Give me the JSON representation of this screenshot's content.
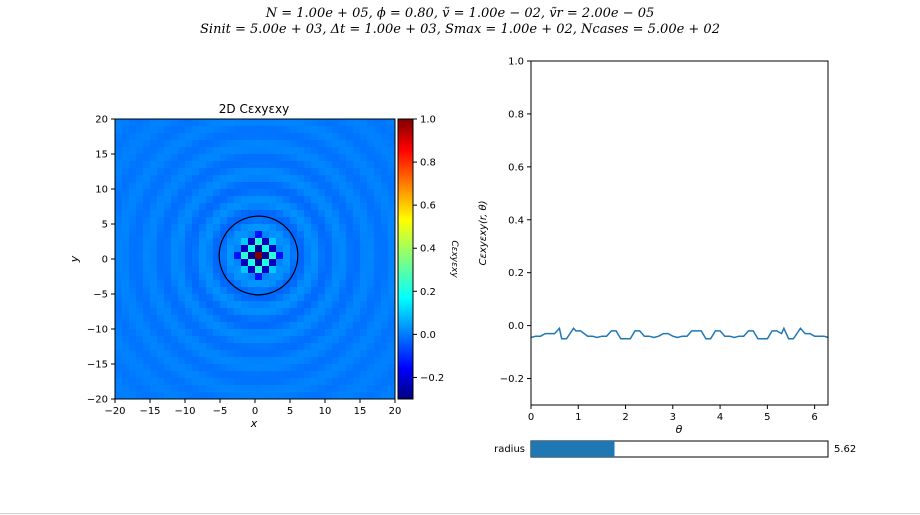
{
  "figure": {
    "title_line1": "N = 1.00e + 05, ϕ = 0.80, ṽ = 1.00e − 02, ṽr = 2.00e − 05",
    "title_line2": "Sinit = 5.00e + 03, Δt = 1.00e + 03, Smax = 1.00e + 02, Ncases = 5.00e + 02"
  },
  "slider": {
    "label": "radius",
    "value_text": "5.62",
    "value": 5.62,
    "min": 0,
    "max": 20,
    "fill_color": "#1f77b4"
  },
  "chart_data": [
    {
      "type": "heatmap",
      "title": "2D Cεxyεxy",
      "xlabel": "x",
      "ylabel": "y",
      "xlim": [
        -20,
        20
      ],
      "ylim": [
        -20,
        20
      ],
      "x_ticks": [
        "−20",
        "−15",
        "−10",
        "−5",
        "0",
        "5",
        "10",
        "15",
        "20"
      ],
      "y_ticks": [
        "20",
        "15",
        "10",
        "5",
        "0",
        "−5",
        "−10",
        "−15",
        "−20"
      ],
      "grid_size": 40,
      "cells": [
        {
          "dx": 0,
          "dy": 0,
          "value": 1.0
        },
        {
          "dx": 1,
          "dy": 0,
          "value": -0.28
        },
        {
          "dx": -1,
          "dy": 0,
          "value": -0.28
        },
        {
          "dx": 0,
          "dy": 1,
          "value": -0.28
        },
        {
          "dx": 0,
          "dy": -1,
          "value": -0.28
        },
        {
          "dx": 1,
          "dy": 1,
          "value": 0.22
        },
        {
          "dx": -1,
          "dy": 1,
          "value": 0.22
        },
        {
          "dx": 1,
          "dy": -1,
          "value": 0.22
        },
        {
          "dx": -1,
          "dy": -1,
          "value": 0.22
        },
        {
          "dx": 2,
          "dy": 0,
          "value": 0.24
        },
        {
          "dx": -2,
          "dy": 0,
          "value": 0.24
        },
        {
          "dx": 0,
          "dy": 2,
          "value": 0.24
        },
        {
          "dx": 0,
          "dy": -2,
          "value": 0.24
        },
        {
          "dx": 2,
          "dy": 1,
          "value": -0.22
        },
        {
          "dx": -2,
          "dy": 1,
          "value": -0.22
        },
        {
          "dx": 2,
          "dy": -1,
          "value": -0.22
        },
        {
          "dx": -2,
          "dy": -1,
          "value": -0.22
        },
        {
          "dx": 1,
          "dy": 2,
          "value": -0.22
        },
        {
          "dx": -1,
          "dy": 2,
          "value": -0.22
        },
        {
          "dx": 1,
          "dy": -2,
          "value": -0.22
        },
        {
          "dx": -1,
          "dy": -2,
          "value": -0.22
        },
        {
          "dx": 2,
          "dy": 2,
          "value": 0.12
        },
        {
          "dx": -2,
          "dy": 2,
          "value": 0.12
        },
        {
          "dx": 2,
          "dy": -2,
          "value": 0.12
        },
        {
          "dx": -2,
          "dy": -2,
          "value": 0.12
        },
        {
          "dx": 3,
          "dy": 0,
          "value": -0.12
        },
        {
          "dx": -3,
          "dy": 0,
          "value": -0.12
        },
        {
          "dx": 0,
          "dy": 3,
          "value": -0.12
        },
        {
          "dx": 0,
          "dy": -3,
          "value": -0.12
        }
      ],
      "ring_radius": 5.62,
      "colorbar": {
        "label": "Cεxyεxy",
        "min": -0.3,
        "max": 1.0,
        "ticks": [
          "−0.2",
          "0.0",
          "0.2",
          "0.4",
          "0.6",
          "0.8",
          "1.0"
        ],
        "tick_values": [
          -0.2,
          0.0,
          0.2,
          0.4,
          0.6,
          0.8,
          1.0
        ],
        "colormap": "jet"
      }
    },
    {
      "type": "line",
      "xlabel": "θ",
      "ylabel": "Cεxyεxy(r, θ)",
      "xlim": [
        0,
        6.283
      ],
      "ylim": [
        -0.3,
        1.0
      ],
      "x_ticks": [
        "0",
        "1",
        "2",
        "3",
        "4",
        "5",
        "6"
      ],
      "y_ticks": [
        "−0.2",
        "0.0",
        "0.2",
        "0.4",
        "0.6",
        "0.8",
        "1.0"
      ],
      "color": "#1f77b4",
      "series": [
        {
          "x": [
            0.0,
            0.1,
            0.2,
            0.3,
            0.4,
            0.5,
            0.6,
            0.65,
            0.75,
            0.9,
            0.95,
            1.05,
            1.2,
            1.3,
            1.4,
            1.5,
            1.6,
            1.7,
            1.8,
            1.9,
            2.0,
            2.1,
            2.2,
            2.3,
            2.4,
            2.5,
            2.6,
            2.7,
            2.8,
            2.9,
            3.0,
            3.1,
            3.2,
            3.3,
            3.4,
            3.5,
            3.6,
            3.7,
            3.8,
            3.9,
            4.0,
            4.1,
            4.2,
            4.3,
            4.4,
            4.5,
            4.6,
            4.7,
            4.8,
            4.9,
            5.0,
            5.1,
            5.2,
            5.3,
            5.35,
            5.45,
            5.55,
            5.7,
            5.8,
            5.9,
            6.0,
            6.1,
            6.2,
            6.283
          ],
          "y": [
            -0.045,
            -0.04,
            -0.04,
            -0.03,
            -0.03,
            -0.03,
            -0.01,
            -0.05,
            -0.05,
            -0.01,
            -0.02,
            -0.02,
            -0.04,
            -0.04,
            -0.045,
            -0.04,
            -0.04,
            -0.02,
            -0.02,
            -0.05,
            -0.05,
            -0.05,
            -0.02,
            -0.02,
            -0.04,
            -0.04,
            -0.045,
            -0.04,
            -0.03,
            -0.03,
            -0.04,
            -0.045,
            -0.04,
            -0.04,
            -0.02,
            -0.02,
            -0.02,
            -0.05,
            -0.05,
            -0.02,
            -0.02,
            -0.04,
            -0.04,
            -0.045,
            -0.04,
            -0.04,
            -0.02,
            -0.02,
            -0.05,
            -0.05,
            -0.05,
            -0.02,
            -0.02,
            -0.03,
            -0.01,
            -0.05,
            -0.05,
            -0.01,
            -0.03,
            -0.03,
            -0.04,
            -0.04,
            -0.04,
            -0.045
          ]
        }
      ]
    }
  ]
}
